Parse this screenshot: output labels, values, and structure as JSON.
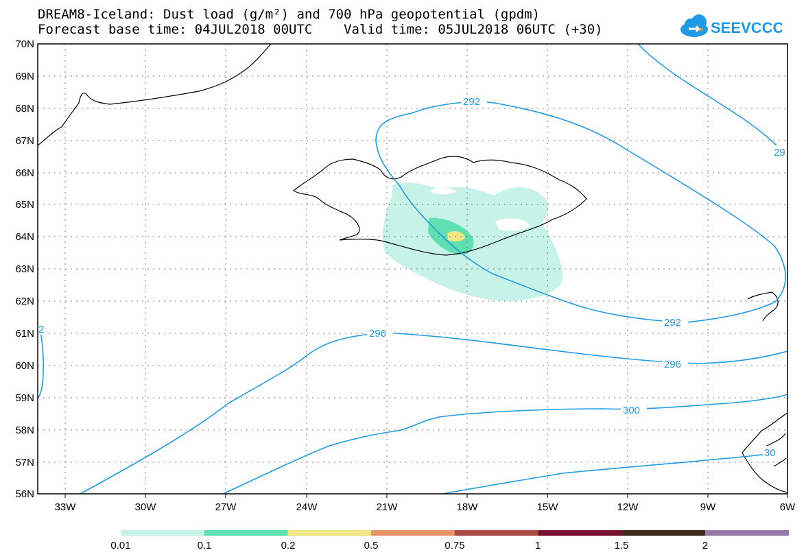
{
  "title": {
    "line1": "DREAM8-Iceland: Dust load (g/m²) and 700 hPa geopotential (gpdm)",
    "line2": "Forecast base time: 04JUL2018 00UTC    Valid time: 05JUL2018 06UTC (+30)"
  },
  "logo": {
    "text": "SEEVCCC",
    "icon": "cloud-icon",
    "color": "#1e9ae6"
  },
  "map": {
    "lat_labels": [
      "70N",
      "69N",
      "68N",
      "67N",
      "66N",
      "65N",
      "64N",
      "63N",
      "62N",
      "61N",
      "60N",
      "59N",
      "58N",
      "57N",
      "56N"
    ],
    "lon_labels": [
      "33W",
      "30W",
      "27W",
      "24W",
      "21W",
      "18W",
      "15W",
      "12W",
      "9W",
      "6W"
    ],
    "contour_labels": [
      "292",
      "292",
      "29",
      "296",
      "296",
      "300",
      "30",
      "2"
    ],
    "contour_color": "#1e9ae6",
    "coast_color": "#000000"
  },
  "colorbar": {
    "colors": [
      "#c6f2e8",
      "#5fe0b0",
      "#f2e685",
      "#e8956a",
      "#a84c44",
      "#7a0e2e",
      "#3d2a1a",
      "#9a78a8"
    ],
    "labels": [
      "0.01",
      "0.1",
      "0.2",
      "0.5",
      "0.75",
      "1",
      "1.5",
      "2"
    ]
  }
}
